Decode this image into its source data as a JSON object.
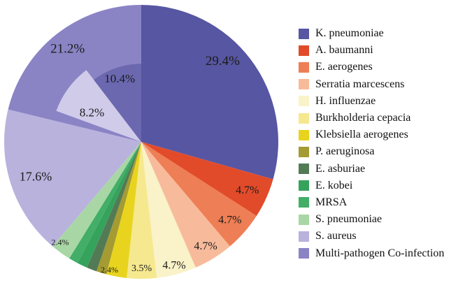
{
  "chart_data": {
    "type": "pie",
    "title": "",
    "start_angle_deg": 0,
    "direction": "clockwise",
    "legend_position": "right",
    "background": "#ffffff",
    "label_color": "#1b1b1b",
    "slices": [
      {
        "label": "K. pneumoniae",
        "value": 29.4,
        "pct_label": "29.4%",
        "color": "#5756a2",
        "label_size": 19,
        "label_dist": 0.84,
        "label_angle_deg": 45
      },
      {
        "label": "A. baumanni",
        "value": 4.7,
        "pct_label": "4.7%",
        "color": "#e14b2a",
        "label_size": 16,
        "label_dist": 0.85
      },
      {
        "label": "E. aerogenes",
        "value": 4.7,
        "pct_label": "4.7%",
        "color": "#ee7e55",
        "label_size": 16,
        "label_dist": 0.86
      },
      {
        "label": "Serratia marcescens",
        "value": 4.7,
        "pct_label": "4.7%",
        "color": "#f7bb9b",
        "label_size": 16,
        "label_dist": 0.89
      },
      {
        "label": "H. influenzae",
        "value": 4.7,
        "pct_label": "4.7%",
        "color": "#faf2c8",
        "label_size": 16,
        "label_dist": 0.93
      },
      {
        "label": "Burkholderia cepacia",
        "value": 3.5,
        "pct_label": "3.5%",
        "color": "#f5e88f",
        "label_size": 14,
        "label_dist": 0.92
      },
      {
        "label": "Klebsiella aerogenes",
        "value": 2.4,
        "pct_label": "2.4%",
        "color": "#e8d41e",
        "label_size": 12,
        "label_dist": 0.96,
        "label_angle_deg": 194
      },
      {
        "label": "P. aeruginosa",
        "value": 1.2,
        "pct_label": "",
        "color": "#a49b32",
        "label_size": 0,
        "label_dist": 0
      },
      {
        "label": "E. asburiae",
        "value": 1.2,
        "pct_label": "",
        "color": "#527b55",
        "label_size": 0,
        "label_dist": 0
      },
      {
        "label": "E. kobei",
        "value": 1.2,
        "pct_label": "",
        "color": "#35a35c",
        "label_size": 0,
        "label_dist": 0
      },
      {
        "label": "MRSA",
        "value": 1.1,
        "pct_label": "",
        "color": "#42ae68",
        "label_size": 0,
        "label_dist": 0
      },
      {
        "label": "S. pneumoniae",
        "value": 2.4,
        "pct_label": "2.4%",
        "color": "#a8d7a5",
        "label_size": 12,
        "label_dist": 0.94,
        "label_angle_deg": 219
      },
      {
        "label": "S. aureus",
        "value": 17.6,
        "pct_label": "17.6%",
        "color": "#b8b2dd",
        "label_size": 18,
        "label_dist": 0.81
      },
      {
        "label": "Multi-pathogen Co-infection",
        "value": 21.2,
        "pct_label": "21.2%",
        "color": "#8a84c5",
        "label_size": 19,
        "label_dist": 0.87
      }
    ],
    "inner_overlay_slices": [
      {
        "pct_label": "8.2%",
        "value": 8.2,
        "start_deg": 290.0,
        "end_deg": 322.6,
        "radius_ratio": 0.66,
        "color": "#cfcbe9",
        "label_size": 17,
        "label_dist": 0.42,
        "label_angle_deg": 301
      },
      {
        "pct_label": "10.4%",
        "value": 10.4,
        "start_deg": 322.6,
        "end_deg": 360.0,
        "radius_ratio": 0.57,
        "color": "#6b68b0",
        "label_size": 17,
        "label_dist": 0.49
      }
    ]
  }
}
